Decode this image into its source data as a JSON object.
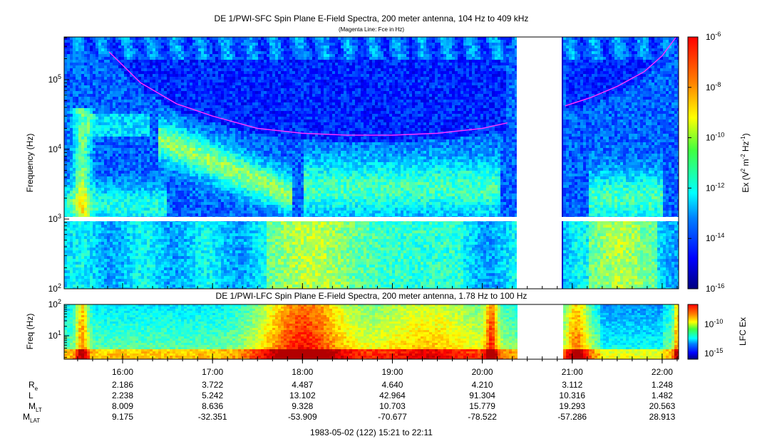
{
  "chart_data": [
    {
      "type": "heatmap",
      "title": "DE 1/PWI-SFC  Spin Plane E-Field Spectra, 200 meter antenna, 104 Hz to 409 kHz",
      "subtitle": "(Magenta Line: Fce in Hz)",
      "ylabel": "Frequency (Hz)",
      "yscale": "log",
      "ylim": [
        100,
        409000
      ],
      "y_ticks": [
        {
          "value": 100,
          "base": "10",
          "exp": "2"
        },
        {
          "value": 1000,
          "base": "10",
          "exp": "3"
        },
        {
          "value": 10000,
          "base": "10",
          "exp": "4"
        },
        {
          "value": 100000,
          "base": "10",
          "exp": "5"
        }
      ],
      "colorbar": {
        "label_prefix": "Ex (V",
        "label_sup1": "2",
        "label_mid": " m",
        "label_sup2": "-2",
        "label_mid2": " Hz",
        "label_sup3": "-1",
        "label_suffix": ")",
        "scale": "log",
        "range": [
          1e-16,
          1e-06
        ],
        "ticks": [
          {
            "base": "10",
            "exp": "-6"
          },
          {
            "base": "10",
            "exp": "-8"
          },
          {
            "base": "10",
            "exp": "-10"
          },
          {
            "base": "10",
            "exp": "-12"
          },
          {
            "base": "10",
            "exp": "-14"
          },
          {
            "base": "10",
            "exp": "-16"
          }
        ]
      },
      "data_gap": {
        "start": "20:23",
        "end": "20:53"
      },
      "fce_line": {
        "name": "Fce in Hz",
        "color": "#ff33ff",
        "segments": [
          {
            "t": [
              15.85,
              16.2,
              16.6,
              17.0,
              17.5,
              18.0,
              18.5,
              19.0,
              19.5,
              20.0,
              20.28
            ],
            "f": [
              250000,
              90000,
              45000,
              30000,
              20000,
              17000,
              16000,
              16000,
              17000,
              20000,
              24000
            ]
          },
          {
            "t": [
              20.92,
              21.2,
              21.5,
              21.8,
              22.0,
              22.15
            ],
            "f": [
              42000,
              55000,
              80000,
              130000,
              220000,
              400000
            ]
          }
        ]
      }
    },
    {
      "type": "heatmap",
      "title": "DE 1/PWI-LFC  Spin Plane E-Field Spectra, 200 meter antenna, 1.78 Hz to 100 Hz",
      "ylabel": "Freq (Hz)",
      "yscale": "log",
      "ylim": [
        1.78,
        100
      ],
      "y_ticks": [
        {
          "value": 10,
          "base": "10",
          "exp": "1"
        },
        {
          "value": 100,
          "base": "10",
          "exp": "2"
        }
      ],
      "colorbar": {
        "label": "LFC Ex",
        "ticks": [
          {
            "base": "10",
            "exp": "-10"
          },
          {
            "base": "10",
            "exp": "-15"
          }
        ]
      },
      "data_gap": {
        "start": "20:23",
        "end": "20:53"
      }
    }
  ],
  "time_axis": {
    "start_hours": 15.35,
    "end_hours": 22.183,
    "ticks": [
      "16:00",
      "17:00",
      "18:00",
      "19:00",
      "20:00",
      "21:00",
      "22:00"
    ]
  },
  "ephemeris": {
    "rows": [
      {
        "label": "R",
        "sub": "e",
        "values": [
          "2.186",
          "3.722",
          "4.487",
          "4.640",
          "4.210",
          "3.112",
          "1.248"
        ]
      },
      {
        "label": "L",
        "sub": "",
        "values": [
          "2.238",
          "5.242",
          "13.102",
          "42.964",
          "91.304",
          "10.316",
          "1.482"
        ]
      },
      {
        "label": "M",
        "sub": "LT",
        "values": [
          "8.009",
          "8.636",
          "9.328",
          "10.703",
          "15.779",
          "19.293",
          "20.563"
        ]
      },
      {
        "label": "M",
        "sub": "LAT",
        "values": [
          "9.175",
          "-32.351",
          "-53.909",
          "-70.677",
          "-78.522",
          "-57.286",
          "28.913"
        ]
      }
    ]
  },
  "footer": "1983-05-02 (122) 15:21 to 22:11"
}
